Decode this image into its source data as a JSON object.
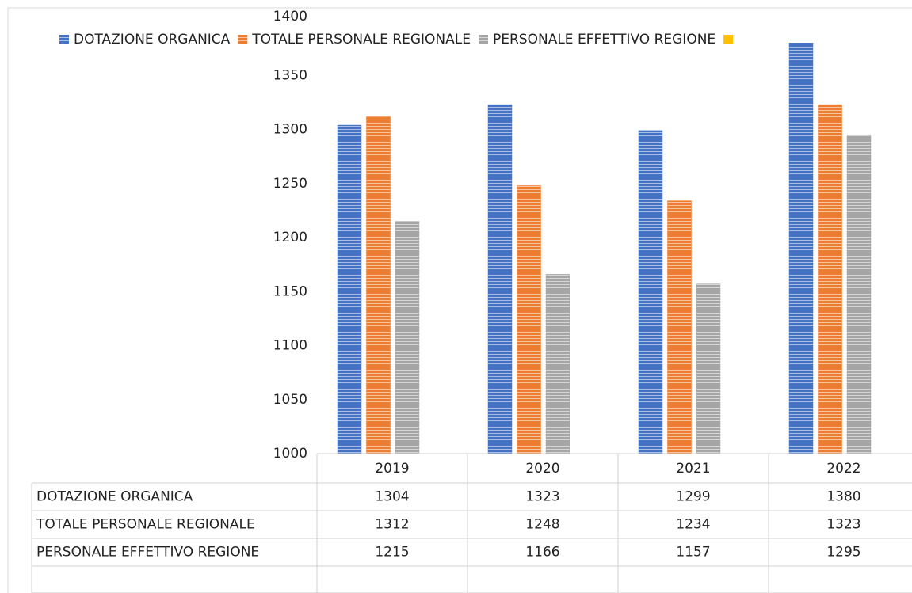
{
  "chart_data": {
    "type": "bar",
    "categories": [
      "2019",
      "2020",
      "2021",
      "2022"
    ],
    "series": [
      {
        "name": "DOTAZIONE ORGANICA",
        "color": "#4472c4",
        "values": [
          1304,
          1323,
          1299,
          1380
        ]
      },
      {
        "name": "TOTALE PERSONALE REGIONALE",
        "color": "#ed7d31",
        "values": [
          1312,
          1248,
          1234,
          1323
        ]
      },
      {
        "name": "PERSONALE EFFETTIVO REGIONE",
        "color": "#a5a5a5",
        "values": [
          1215,
          1166,
          1157,
          1295
        ]
      }
    ],
    "ylim": [
      1000,
      1400
    ],
    "yticks": [
      1000,
      1050,
      1100,
      1150,
      1200,
      1250,
      1300,
      1350,
      1400
    ],
    "grid": false,
    "legend": "top",
    "data_table": true
  }
}
